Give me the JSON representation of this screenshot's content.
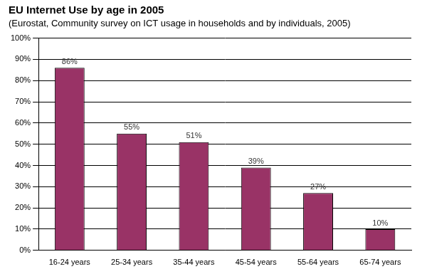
{
  "chart_data": {
    "type": "bar",
    "title": "EU Internet Use by age in 2005",
    "subtitle": "(Eurostat, Community survey on ICT usage in households and by individuals, 2005)",
    "categories": [
      "16-24 years",
      "25-34 years",
      "35-44 years",
      "45-54 years",
      "55-64 years",
      "65-74 years"
    ],
    "values": [
      86,
      55,
      51,
      39,
      27,
      10
    ],
    "value_labels": [
      "86%",
      "55%",
      "51%",
      "39%",
      "27%",
      "10%"
    ],
    "color": "#993366",
    "ylim": [
      0,
      100
    ],
    "yticks": [
      {
        "value": 0,
        "label": "0%"
      },
      {
        "value": 10,
        "label": "10%"
      },
      {
        "value": 20,
        "label": "20%"
      },
      {
        "value": 30,
        "label": "30%"
      },
      {
        "value": 40,
        "label": "40%"
      },
      {
        "value": 50,
        "label": "50%"
      },
      {
        "value": 60,
        "label": "60%"
      },
      {
        "value": 70,
        "label": "70%"
      },
      {
        "value": 80,
        "label": "80%"
      },
      {
        "value": 90,
        "label": "90%"
      },
      {
        "value": 100,
        "label": "100%"
      }
    ],
    "grid": true,
    "data_labels": true
  }
}
